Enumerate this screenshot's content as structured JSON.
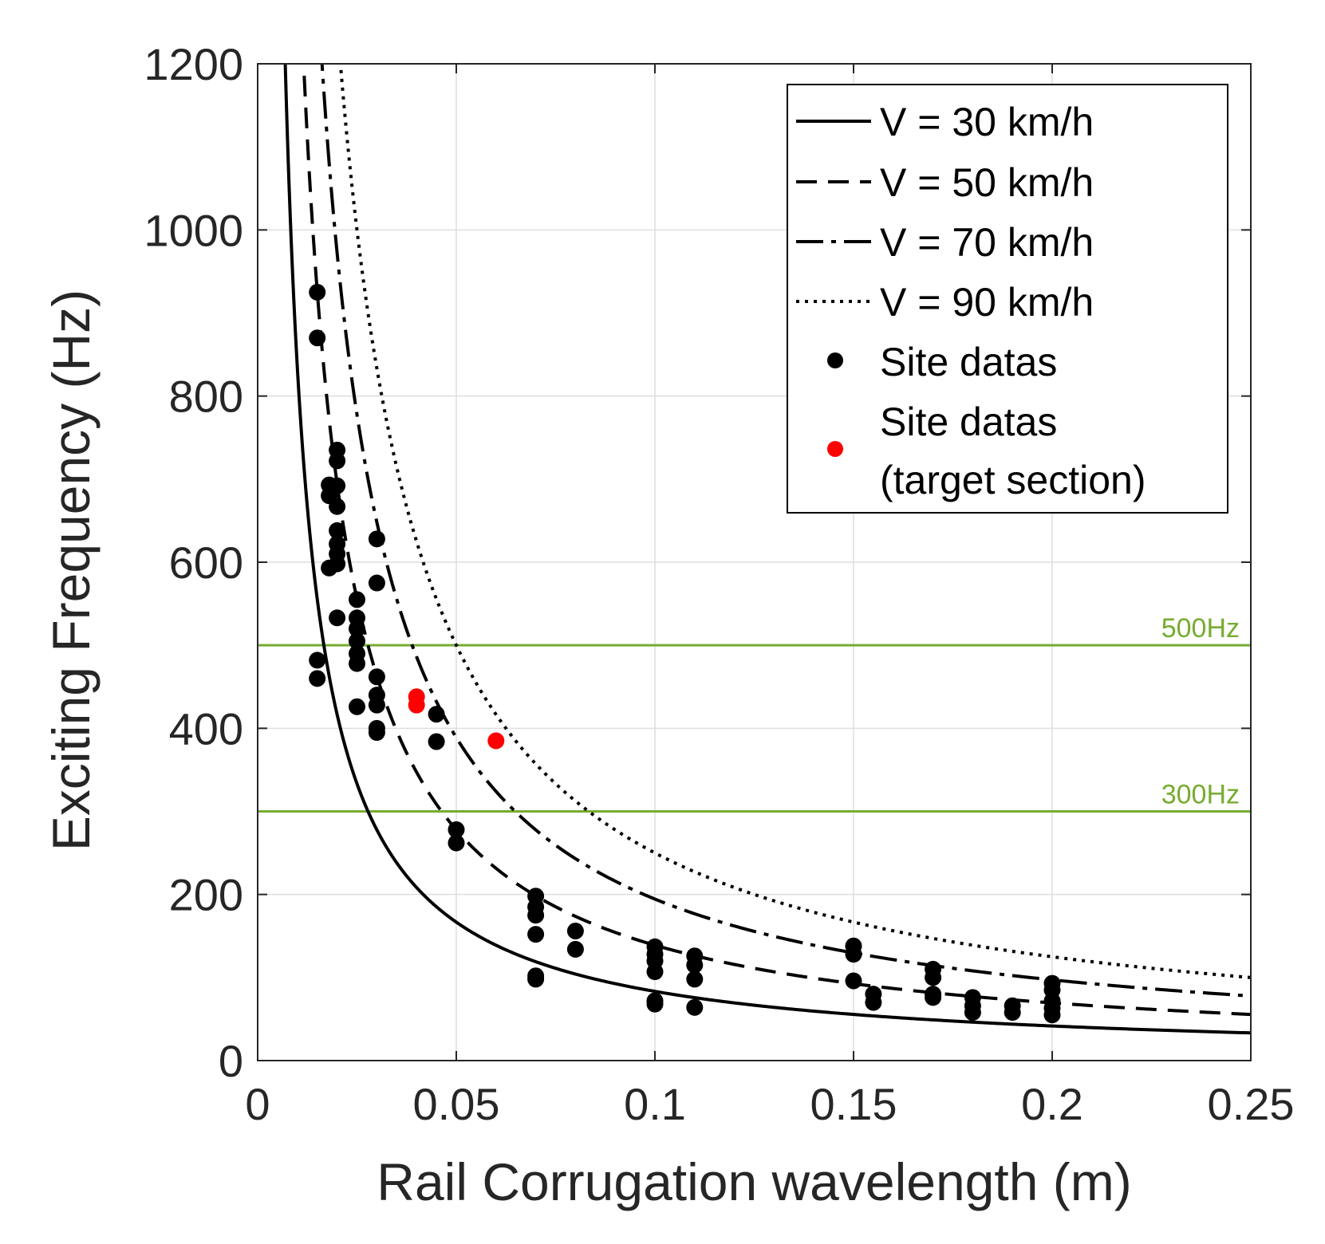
{
  "chart_data": {
    "type": "line",
    "title": "",
    "xlabel": "Rail Corrugation wavelength (m)",
    "ylabel": "Exciting Frequency (Hz)",
    "xlim": [
      0,
      0.25
    ],
    "ylim": [
      0,
      1200
    ],
    "grid": true,
    "x_ticks": [
      0,
      0.05,
      0.1,
      0.15,
      0.2,
      0.25
    ],
    "x_tick_labels": [
      "0",
      "0.05",
      "0.1",
      "0.15",
      "0.2",
      "0.25"
    ],
    "y_ticks": [
      0,
      200,
      400,
      600,
      800,
      1000,
      1200
    ],
    "y_tick_labels": [
      "0",
      "200",
      "400",
      "600",
      "800",
      "1000",
      "1200"
    ],
    "legend_position": "top-right",
    "series": [
      {
        "name": "V = 30 km/h",
        "speed_kmh": 30,
        "style": "solid",
        "formula": "f = (V/3.6) / wavelength"
      },
      {
        "name": "V = 50 km/h",
        "speed_kmh": 50,
        "style": "dashed",
        "formula": "f = (V/3.6) / wavelength"
      },
      {
        "name": "V = 70 km/h",
        "speed_kmh": 70,
        "style": "dashdot",
        "formula": "f = (V/3.6) / wavelength"
      },
      {
        "name": "V = 90 km/h",
        "speed_kmh": 90,
        "style": "dotted",
        "formula": "f = (V/3.6) / wavelength"
      }
    ],
    "scatter_series": [
      {
        "name": "Site datas",
        "color": "#000000",
        "points": [
          [
            0.015,
            925
          ],
          [
            0.015,
            870
          ],
          [
            0.015,
            482
          ],
          [
            0.015,
            460
          ],
          [
            0.018,
            693
          ],
          [
            0.018,
            680
          ],
          [
            0.018,
            593
          ],
          [
            0.02,
            735
          ],
          [
            0.02,
            722
          ],
          [
            0.02,
            692
          ],
          [
            0.02,
            667
          ],
          [
            0.02,
            638
          ],
          [
            0.02,
            622
          ],
          [
            0.02,
            610
          ],
          [
            0.02,
            598
          ],
          [
            0.02,
            533
          ],
          [
            0.025,
            555
          ],
          [
            0.025,
            533
          ],
          [
            0.025,
            520
          ],
          [
            0.025,
            505
          ],
          [
            0.025,
            490
          ],
          [
            0.025,
            478
          ],
          [
            0.025,
            426
          ],
          [
            0.03,
            628
          ],
          [
            0.03,
            575
          ],
          [
            0.03,
            462
          ],
          [
            0.03,
            440
          ],
          [
            0.03,
            428
          ],
          [
            0.03,
            400
          ],
          [
            0.03,
            395
          ],
          [
            0.045,
            417
          ],
          [
            0.045,
            384
          ],
          [
            0.05,
            278
          ],
          [
            0.05,
            262
          ],
          [
            0.07,
            198
          ],
          [
            0.07,
            185
          ],
          [
            0.07,
            175
          ],
          [
            0.07,
            152
          ],
          [
            0.07,
            102
          ],
          [
            0.07,
            98
          ],
          [
            0.08,
            156
          ],
          [
            0.08,
            134
          ],
          [
            0.1,
            137
          ],
          [
            0.1,
            128
          ],
          [
            0.1,
            120
          ],
          [
            0.1,
            107
          ],
          [
            0.1,
            72
          ],
          [
            0.1,
            68
          ],
          [
            0.11,
            126
          ],
          [
            0.11,
            115
          ],
          [
            0.11,
            98
          ],
          [
            0.11,
            64
          ],
          [
            0.15,
            138
          ],
          [
            0.15,
            128
          ],
          [
            0.15,
            96
          ],
          [
            0.155,
            80
          ],
          [
            0.155,
            70
          ],
          [
            0.17,
            110
          ],
          [
            0.17,
            100
          ],
          [
            0.17,
            80
          ],
          [
            0.17,
            76
          ],
          [
            0.18,
            76
          ],
          [
            0.18,
            66
          ],
          [
            0.18,
            58
          ],
          [
            0.19,
            66
          ],
          [
            0.19,
            58
          ],
          [
            0.2,
            93
          ],
          [
            0.2,
            85
          ],
          [
            0.2,
            72
          ],
          [
            0.2,
            63
          ],
          [
            0.2,
            55
          ]
        ]
      },
      {
        "name": "Site datas (target section)",
        "legend_lines": [
          "Site datas",
          "(target section)"
        ],
        "color": "#ff0000",
        "points": [
          [
            0.04,
            438
          ],
          [
            0.04,
            428
          ],
          [
            0.06,
            385
          ]
        ]
      }
    ],
    "reference_lines": [
      {
        "y": 500,
        "label": "500Hz",
        "color": "#77ac30"
      },
      {
        "y": 300,
        "label": "300Hz",
        "color": "#77ac30"
      }
    ]
  }
}
